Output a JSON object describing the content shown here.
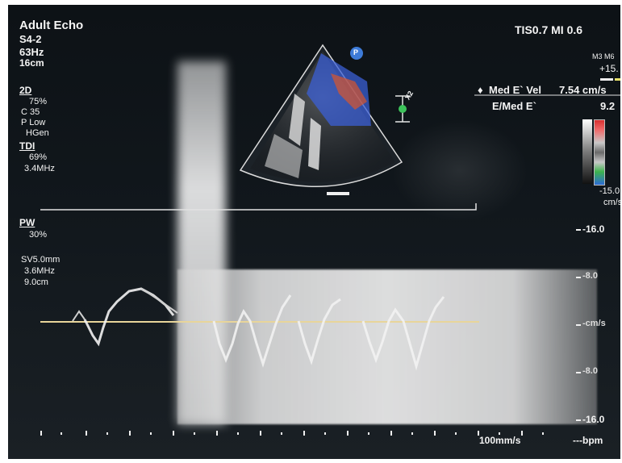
{
  "header": {
    "mode_title": "Adult Echo",
    "probe": "S4-2",
    "frame_rate": "63Hz",
    "depth": "16cm",
    "tis_mi": "TIS0.7  MI 0.6"
  },
  "params_2d": {
    "label": "2D",
    "gain": "75%",
    "compress": "C 35",
    "power": "P Low",
    "freq": "HGen"
  },
  "params_tdi": {
    "label": "TDI",
    "gain": "69%",
    "freq": "3.4MHz"
  },
  "params_pw": {
    "label": "PW",
    "gain": "30%",
    "sample_volume": "SV5.0mm",
    "freq": "3.6MHz",
    "depth": "9.0cm"
  },
  "measurements": {
    "m_labels": "M3 M6",
    "scale_top": "+15.",
    "med_e_vel_label": "Med E` Vel",
    "med_e_vel_value": "7.54 cm/s",
    "e_med_e_label": "E/Med E`",
    "e_med_e_value": "9.2",
    "scale_bottom": "-15.0",
    "scale_unit": "cm/s"
  },
  "doppler_scale": {
    "top": "-16.0",
    "upper_mid": "-8.0",
    "zero": "-cm/s",
    "lower_mid": "-8.0",
    "bottom": "-16.0"
  },
  "footer": {
    "sweep_speed": "100mm/s",
    "heart_rate": "---bpm"
  },
  "icons": {
    "probe_marker": "P",
    "zoom_label": "X2"
  },
  "colors": {
    "background": "#11171c",
    "text": "#f4f4f4",
    "color_flow_red": "#d9562c",
    "color_flow_blue": "#3b5fd4",
    "marker_blue": "#3d7bd8",
    "marker_green": "#3cc25a",
    "baseline": "#e8d59a"
  }
}
